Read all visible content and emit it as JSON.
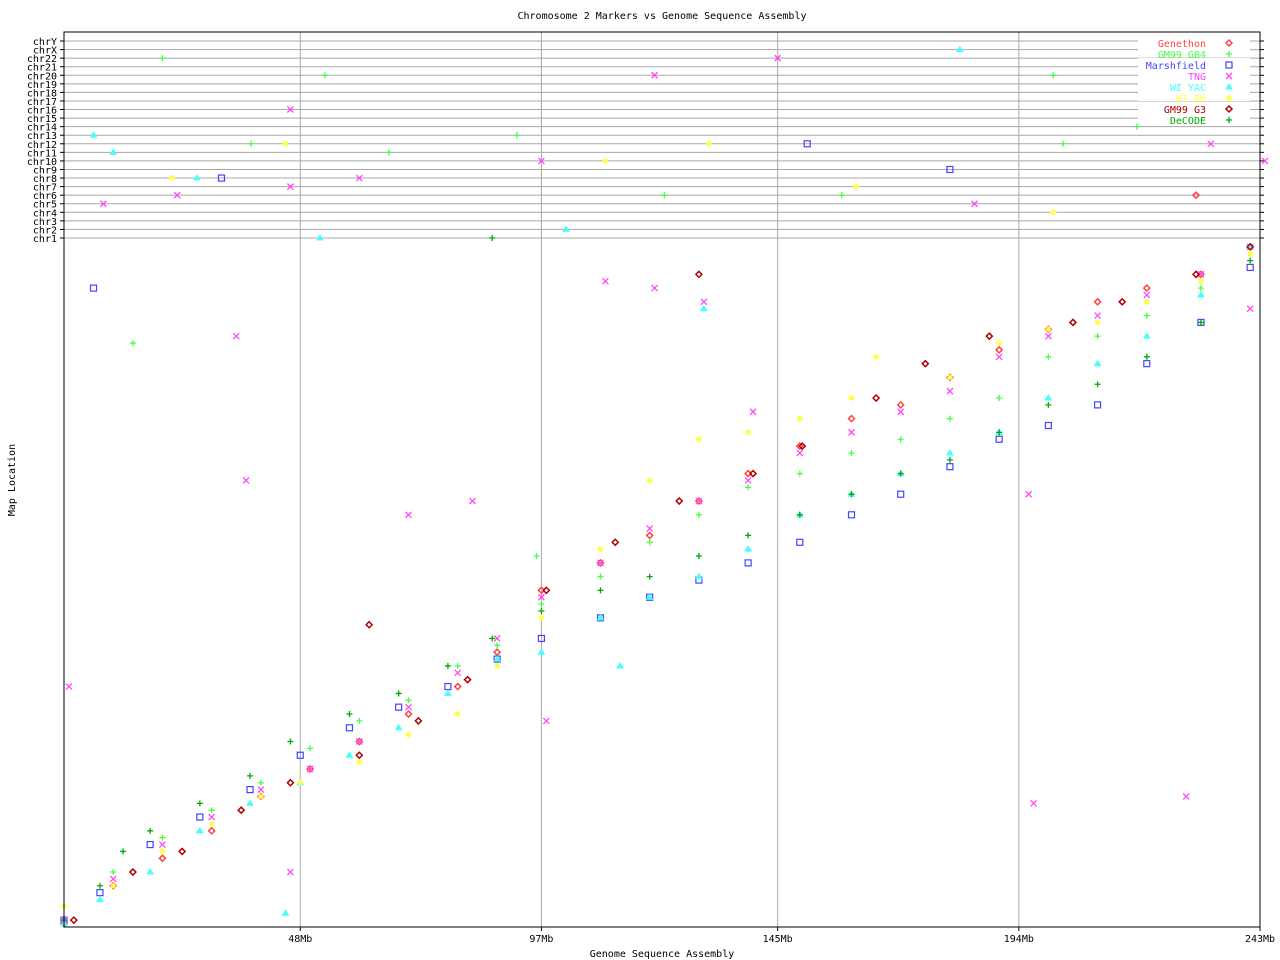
{
  "chart_data": {
    "type": "scatter",
    "title": "Chromosome 2 Markers vs Genome Sequence Assembly",
    "xlabel": "Genome Sequence Assembly",
    "ylabel": "Map Location",
    "xlim": [
      0,
      243
    ],
    "ylim": [
      0,
      100
    ],
    "x_ticks": [
      {
        "v": 48,
        "label": "48Mb"
      },
      {
        "v": 97,
        "label": "97Mb"
      },
      {
        "v": 145,
        "label": "145Mb"
      },
      {
        "v": 194,
        "label": "194Mb"
      },
      {
        "v": 243,
        "label": "243Mb"
      }
    ],
    "grid": true,
    "legend_position": "top-right",
    "chromosome_rows": [
      "chrY",
      "chrX",
      "chr22",
      "chr21",
      "chr20",
      "chr19",
      "chr18",
      "chr17",
      "chr16",
      "chr15",
      "chr14",
      "chr13",
      "chr12",
      "chr11",
      "chr10",
      "chr9",
      "chr8",
      "chr7",
      "chr6",
      "chr5",
      "chr4",
      "chr3",
      "chr2",
      "chr1"
    ],
    "series": [
      {
        "name": "Genethon",
        "color": "#ff4444",
        "marker": "diamond",
        "points": [
          [
            0,
            0.5
          ],
          [
            10,
            6
          ],
          [
            20,
            10
          ],
          [
            30,
            14
          ],
          [
            40,
            19
          ],
          [
            50,
            23
          ],
          [
            60,
            27
          ],
          [
            70,
            31
          ],
          [
            80,
            35
          ],
          [
            88,
            40
          ],
          [
            97,
            49
          ],
          [
            109,
            53
          ],
          [
            119,
            57
          ],
          [
            129,
            62
          ],
          [
            139,
            66
          ],
          [
            149.5,
            70
          ],
          [
            160,
            74
          ],
          [
            170,
            76
          ],
          [
            180,
            80
          ],
          [
            190,
            84
          ],
          [
            200,
            87
          ],
          [
            210,
            91
          ],
          [
            220,
            93
          ],
          [
            231,
            95
          ],
          [
            241,
            99
          ]
        ],
        "other_chr": [
          [
            230,
            "chr6"
          ]
        ]
      },
      {
        "name": "GM99 GB4",
        "color": "#44ff44",
        "marker": "plus",
        "points": [
          [
            0,
            1
          ],
          [
            10,
            8
          ],
          [
            20,
            13
          ],
          [
            30,
            17
          ],
          [
            40,
            21
          ],
          [
            50,
            26
          ],
          [
            60,
            30
          ],
          [
            70,
            33
          ],
          [
            80,
            38
          ],
          [
            88,
            41
          ],
          [
            97,
            47
          ],
          [
            109,
            51
          ],
          [
            119,
            56
          ],
          [
            129,
            60
          ],
          [
            139,
            64
          ],
          [
            149.5,
            66
          ],
          [
            160,
            69
          ],
          [
            170,
            71
          ],
          [
            180,
            74
          ],
          [
            190,
            77
          ],
          [
            200,
            83
          ],
          [
            210,
            86
          ],
          [
            220,
            89
          ],
          [
            231,
            93
          ],
          [
            241,
            99
          ],
          [
            14,
            85
          ],
          [
            96,
            54
          ]
        ],
        "other_chr": [
          [
            20,
            "chr22"
          ],
          [
            53,
            "chr20"
          ],
          [
            38,
            "chr12"
          ],
          [
            66,
            "chr11"
          ],
          [
            92,
            "chr13"
          ],
          [
            122,
            "chr6"
          ],
          [
            158,
            "chr6"
          ],
          [
            201,
            "chr20"
          ],
          [
            203,
            "chr12"
          ],
          [
            218,
            "chr14"
          ]
        ]
      },
      {
        "name": "Marshfield",
        "color": "#4444ff",
        "marker": "square",
        "points": [
          [
            0,
            1
          ],
          [
            7.3,
            5
          ],
          [
            17.5,
            12
          ],
          [
            27.6,
            16
          ],
          [
            37.8,
            20
          ],
          [
            48,
            25
          ],
          [
            58,
            29
          ],
          [
            68,
            32
          ],
          [
            78,
            35
          ],
          [
            88,
            39
          ],
          [
            97,
            42
          ],
          [
            109,
            45
          ],
          [
            119,
            48
          ],
          [
            129,
            50.5
          ],
          [
            139,
            53
          ],
          [
            149.5,
            56
          ],
          [
            160,
            60
          ],
          [
            170,
            63
          ],
          [
            180,
            67
          ],
          [
            190,
            71
          ],
          [
            200,
            73
          ],
          [
            210,
            76
          ],
          [
            220,
            82
          ],
          [
            231,
            88
          ],
          [
            241,
            96
          ],
          [
            6,
            93
          ]
        ],
        "other_chr": [
          [
            32,
            "chr8"
          ],
          [
            151,
            "chr12"
          ],
          [
            180,
            "chr9"
          ]
        ]
      },
      {
        "name": "TNG",
        "color": "#ff44ff",
        "marker": "x",
        "points": [
          [
            0,
            1
          ],
          [
            10,
            7
          ],
          [
            20,
            12
          ],
          [
            30,
            16
          ],
          [
            40,
            20
          ],
          [
            50,
            23
          ],
          [
            60,
            27
          ],
          [
            70,
            32
          ],
          [
            80,
            37
          ],
          [
            88,
            42
          ],
          [
            97,
            48
          ],
          [
            109,
            53
          ],
          [
            119,
            58
          ],
          [
            129,
            62
          ],
          [
            139,
            65
          ],
          [
            149.5,
            69
          ],
          [
            160,
            72
          ],
          [
            170,
            75
          ],
          [
            180,
            78
          ],
          [
            190,
            83
          ],
          [
            200,
            86
          ],
          [
            210,
            89
          ],
          [
            220,
            92
          ],
          [
            231,
            95
          ],
          [
            241,
            99
          ],
          [
            1,
            35
          ],
          [
            35,
            86
          ],
          [
            37,
            65
          ],
          [
            70,
            60
          ],
          [
            83,
            62
          ],
          [
            98,
            30
          ],
          [
            110,
            94
          ],
          [
            130,
            91
          ],
          [
            140,
            75
          ],
          [
            196,
            63
          ],
          [
            197,
            18
          ],
          [
            228,
            19
          ],
          [
            241,
            90
          ],
          [
            46,
            8
          ],
          [
            120,
            93
          ]
        ],
        "other_chr": [
          [
            8,
            "chr5"
          ],
          [
            46,
            "chr16"
          ],
          [
            46,
            "chr7"
          ],
          [
            60,
            "chr8"
          ],
          [
            120,
            "chr20"
          ],
          [
            145,
            "chr22"
          ],
          [
            233,
            "chr12"
          ],
          [
            244,
            "chr10"
          ],
          [
            185,
            "chr5"
          ],
          [
            97,
            "chr10"
          ],
          [
            23,
            "chr6"
          ]
        ]
      },
      {
        "name": "WI YAC",
        "color": "#44ffff",
        "marker": "triangle",
        "points": [
          [
            0,
            0.5
          ],
          [
            7.3,
            4
          ],
          [
            17.5,
            8
          ],
          [
            27.6,
            14
          ],
          [
            37.8,
            18
          ],
          [
            48,
            21
          ],
          [
            58,
            25
          ],
          [
            68,
            29
          ],
          [
            78,
            34
          ],
          [
            88,
            39
          ],
          [
            97,
            40
          ],
          [
            109,
            45
          ],
          [
            119,
            48
          ],
          [
            129,
            51
          ],
          [
            139,
            55
          ],
          [
            149.5,
            60
          ],
          [
            160,
            63
          ],
          [
            170,
            66
          ],
          [
            180,
            69
          ],
          [
            190,
            72
          ],
          [
            200,
            77
          ],
          [
            210,
            82
          ],
          [
            220,
            86
          ],
          [
            231,
            92
          ],
          [
            241,
            99
          ],
          [
            130,
            90
          ],
          [
            113,
            38
          ],
          [
            45,
            2
          ]
        ],
        "other_chr": [
          [
            6,
            "chr13"
          ],
          [
            10,
            "chr11"
          ],
          [
            27,
            "chr8"
          ],
          [
            52,
            "chr1"
          ],
          [
            102,
            "chr2"
          ],
          [
            182,
            "chrX"
          ],
          [
            240,
            "chr20"
          ]
        ]
      },
      {
        "name": "WI RH",
        "color": "#ffff44",
        "marker": "star",
        "points": [
          [
            0,
            3
          ],
          [
            10,
            6
          ],
          [
            20,
            11
          ],
          [
            30,
            15
          ],
          [
            40,
            19
          ],
          [
            48,
            21
          ],
          [
            60,
            24
          ],
          [
            70,
            28
          ],
          [
            80,
            31
          ],
          [
            88,
            38
          ],
          [
            97,
            45
          ],
          [
            109,
            55
          ],
          [
            119,
            65
          ],
          [
            129,
            71
          ],
          [
            139,
            72
          ],
          [
            149.5,
            74
          ],
          [
            160,
            77
          ],
          [
            165,
            83
          ],
          [
            180,
            80
          ],
          [
            190,
            85
          ],
          [
            200,
            87
          ],
          [
            210,
            88
          ],
          [
            220,
            91
          ],
          [
            231,
            94
          ],
          [
            241,
            98
          ]
        ],
        "other_chr": [
          [
            22,
            "chr8"
          ],
          [
            45,
            "chr12"
          ],
          [
            110,
            "chr10"
          ],
          [
            131,
            "chr12"
          ],
          [
            161,
            "chr7"
          ],
          [
            201,
            "chr4"
          ]
        ]
      },
      {
        "name": "GM99 G3",
        "color": "#b00000",
        "marker": "diamond",
        "points": [
          [
            2,
            1
          ],
          [
            14,
            8
          ],
          [
            24,
            11
          ],
          [
            36,
            17
          ],
          [
            46,
            21
          ],
          [
            60,
            25
          ],
          [
            72,
            30
          ],
          [
            82,
            36
          ],
          [
            98,
            49
          ],
          [
            112,
            56
          ],
          [
            125,
            62
          ],
          [
            140,
            66
          ],
          [
            150,
            70
          ],
          [
            165,
            77
          ],
          [
            175,
            82
          ],
          [
            188,
            86
          ],
          [
            205,
            88
          ],
          [
            215,
            91
          ],
          [
            230,
            95
          ],
          [
            241,
            99
          ],
          [
            62,
            44
          ],
          [
            129,
            95
          ]
        ],
        "other_chr": []
      },
      {
        "name": "DeCODE",
        "color": "#00aa00",
        "marker": "plus",
        "points": [
          [
            0,
            1
          ],
          [
            7.3,
            6
          ],
          [
            12,
            11
          ],
          [
            17.5,
            14
          ],
          [
            27.6,
            18
          ],
          [
            37.8,
            22
          ],
          [
            46,
            27
          ],
          [
            58,
            31
          ],
          [
            68,
            34
          ],
          [
            78,
            38
          ],
          [
            87,
            42
          ],
          [
            97,
            46
          ],
          [
            109,
            49
          ],
          [
            119,
            51
          ],
          [
            129,
            54
          ],
          [
            139,
            57
          ],
          [
            149.5,
            60
          ],
          [
            160,
            63
          ],
          [
            170,
            66
          ],
          [
            180,
            68
          ],
          [
            190,
            72
          ],
          [
            200,
            76
          ],
          [
            210,
            79
          ],
          [
            220,
            83
          ],
          [
            231,
            88
          ],
          [
            241,
            97
          ]
        ],
        "other_chr": [
          [
            87,
            "chr1"
          ]
        ]
      }
    ]
  }
}
